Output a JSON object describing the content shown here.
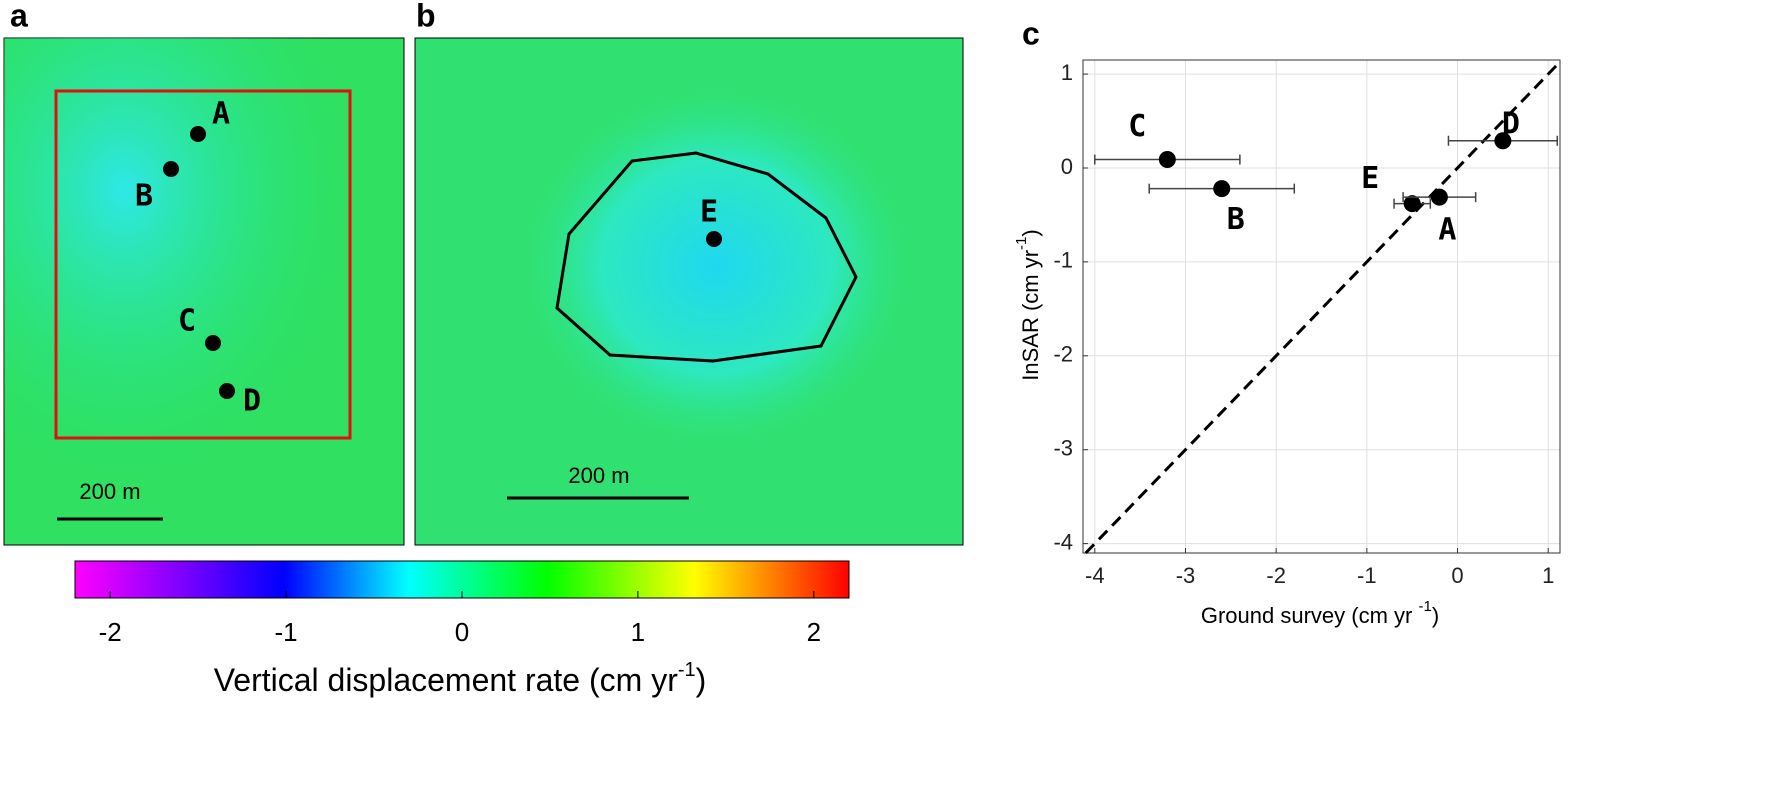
{
  "panel_a": {
    "label": "a",
    "points": [
      "A",
      "B",
      "C",
      "D"
    ],
    "scale_bar": "200 m"
  },
  "panel_b": {
    "label": "b",
    "points": [
      "E"
    ],
    "scale_bar": "200 m"
  },
  "colorbar": {
    "label": "Vertical displacement rate (cm yr",
    "label_sup": "-1",
    "label_end": ")",
    "lim": [
      -2.2,
      2.2
    ],
    "ticks": [
      -2,
      -1,
      0,
      1,
      2
    ]
  },
  "chart_data": [
    {
      "type": "scatter",
      "panel": "c",
      "xlabel": "Ground survey (cm yr ",
      "xlabel_sup": "-1",
      "xlabel_end": ")",
      "ylabel": "InSAR (cm yr",
      "ylabel_sup": "-1",
      "ylabel_end": ")",
      "xlim": [
        -4.13,
        1.13
      ],
      "ylim": [
        -4.1,
        1.15
      ],
      "xticks": [
        -4,
        -3,
        -2,
        -1,
        0,
        1
      ],
      "yticks": [
        -4,
        -3,
        -2,
        -1,
        0,
        1
      ],
      "grid": true,
      "series": [
        {
          "color": "#000000",
          "labels": [
            "C",
            "B",
            "E",
            "A",
            "D"
          ],
          "x": [
            -3.2,
            -2.6,
            -0.5,
            -0.2,
            0.5
          ],
          "values": [
            0.09,
            -0.22,
            -0.38,
            -0.31,
            0.29
          ],
          "xerr": [
            0.8,
            0.8,
            0.2,
            0.4,
            0.6
          ]
        }
      ]
    }
  ]
}
